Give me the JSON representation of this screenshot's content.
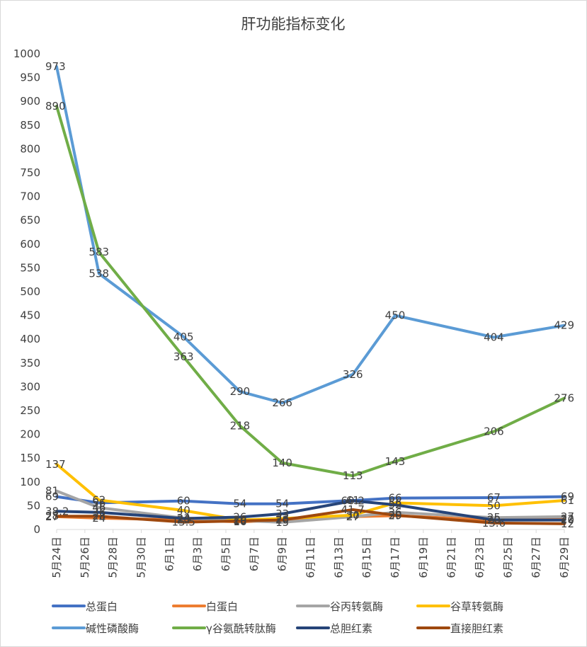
{
  "chart_data": {
    "type": "line",
    "title": "肝功能指标变化",
    "xlabel": "",
    "ylabel": "",
    "ylim": [
      0,
      1000
    ],
    "y_ticks": [
      0,
      50,
      100,
      150,
      200,
      250,
      300,
      350,
      400,
      450,
      500,
      550,
      600,
      650,
      700,
      750,
      800,
      850,
      900,
      950,
      1000
    ],
    "x_tick_labels": [
      "5月24日",
      "5月26日",
      "5月28日",
      "5月30日",
      "6月1日",
      "6月3日",
      "6月5日",
      "6月7日",
      "6月9日",
      "6月11日",
      "6月13日",
      "6月15日",
      "6月17日",
      "6月19日",
      "6月21日",
      "6月23日",
      "6月25日",
      "6月27日",
      "6月29日"
    ],
    "grid": false,
    "legend_position": "bottom",
    "series": [
      {
        "name": "总蛋白",
        "color": "#4472C4",
        "points": [
          [
            "5月24日",
            69
          ],
          [
            "5月27日",
            56
          ],
          [
            "6月2日",
            60
          ],
          [
            "6月6日",
            54
          ],
          [
            "6月9日",
            54
          ],
          [
            "6月14日",
            61
          ],
          [
            "6月17日",
            66
          ],
          [
            "6月24日",
            67
          ],
          [
            "6月29日",
            69
          ]
        ],
        "labels": [
          "69",
          "56",
          "60",
          "54",
          "54",
          "61",
          "66",
          "67",
          "69"
        ]
      },
      {
        "name": "白蛋白",
        "color": "#ED7D31",
        "points": [
          [
            "5月24日",
            27
          ],
          [
            "5月27日",
            24
          ],
          [
            "6月2日",
            20
          ],
          [
            "6月6日",
            16
          ],
          [
            "6月9日",
            20
          ],
          [
            "6月14日",
            27
          ],
          [
            "6月17日",
            29
          ],
          [
            "6月24日",
            20
          ],
          [
            "6月29日",
            22
          ]
        ],
        "labels": [
          "27",
          "24",
          "20",
          "16",
          "20",
          "27",
          "29",
          "20",
          "22"
        ]
      },
      {
        "name": "谷丙转氨酶",
        "color": "#A5A5A5",
        "points": [
          [
            "5月24日",
            81
          ],
          [
            "5月27日",
            46
          ],
          [
            "6月2日",
            24
          ],
          [
            "6月6日",
            19
          ],
          [
            "6月9日",
            15
          ],
          [
            "6月14日",
            27
          ],
          [
            "6月17日",
            36
          ],
          [
            "6月24日",
            25
          ],
          [
            "6月29日",
            27
          ]
        ],
        "labels": [
          "81",
          "46",
          "24",
          "19",
          "15",
          "27",
          "36",
          "25",
          "27"
        ]
      },
      {
        "name": "谷草转氨酶",
        "color": "#FFC000",
        "points": [
          [
            "5月24日",
            137
          ],
          [
            "5月27日",
            62
          ],
          [
            "6月2日",
            40
          ],
          [
            "6月6日",
            20
          ],
          [
            "6月9日",
            23
          ],
          [
            "6月14日",
            30
          ],
          [
            "6月17日",
            56
          ],
          [
            "6月24日",
            50
          ],
          [
            "6月29日",
            61
          ]
        ],
        "labels": [
          "137",
          "62",
          "40",
          "20",
          "23",
          "30",
          "56",
          "50",
          "61"
        ]
      },
      {
        "name": "碱性磷酸酶",
        "color": "#5B9BD5",
        "points": [
          [
            "5月24日",
            973
          ],
          [
            "5月27日",
            538
          ],
          [
            "6月2日",
            405
          ],
          [
            "6月6日",
            290
          ],
          [
            "6月9日",
            266
          ],
          [
            "6月14日",
            326
          ],
          [
            "6月17日",
            450
          ],
          [
            "6月24日",
            404
          ],
          [
            "6月29日",
            429
          ]
        ],
        "labels": [
          "973",
          "538",
          "405",
          "290",
          "266",
          "326",
          "450",
          "404",
          "429"
        ]
      },
      {
        "name": "γ谷氨酰转肽酶",
        "color": "#70AD47",
        "points": [
          [
            "5月24日",
            890
          ],
          [
            "5月27日",
            583
          ],
          [
            "6月2日",
            363
          ],
          [
            "6月6日",
            218
          ],
          [
            "6月9日",
            140
          ],
          [
            "6月14日",
            113
          ],
          [
            "6月17日",
            143
          ],
          [
            "6月24日",
            206
          ],
          [
            "6月29日",
            276
          ]
        ],
        "labels": [
          "890",
          "583",
          "363",
          "218",
          "140",
          "113",
          "143",
          "206",
          "276"
        ]
      },
      {
        "name": "总胆红素",
        "color": "#264478",
        "points": [
          [
            "5月24日",
            38.2
          ],
          [
            "5月27日",
            36
          ],
          [
            "6月2日",
            23
          ],
          [
            "6月6日",
            26
          ],
          [
            "6月9日",
            33
          ],
          [
            "6月14日",
            60.2
          ],
          [
            "6月17日",
            52
          ],
          [
            "6月24日",
            20
          ],
          [
            "6月29日",
            20
          ]
        ],
        "labels": [
          "38.2",
          "36",
          "23",
          "26",
          "33",
          "60.2",
          "52",
          "20",
          "20"
        ]
      },
      {
        "name": "直接胆红素",
        "color": "#9E480E",
        "points": [
          [
            "5月24日",
            28
          ],
          [
            "5月27日",
            28
          ],
          [
            "6月2日",
            15.5
          ],
          [
            "6月6日",
            18
          ],
          [
            "6月9日",
            20
          ],
          [
            "6月14日",
            41.7
          ],
          [
            "6月17日",
            30
          ],
          [
            "6月24日",
            13.6
          ],
          [
            "6月29日",
            12
          ]
        ],
        "labels": [
          "28",
          "28",
          "15.5",
          "18",
          "20",
          "41.7",
          "30",
          "13.6",
          "12"
        ]
      }
    ]
  }
}
